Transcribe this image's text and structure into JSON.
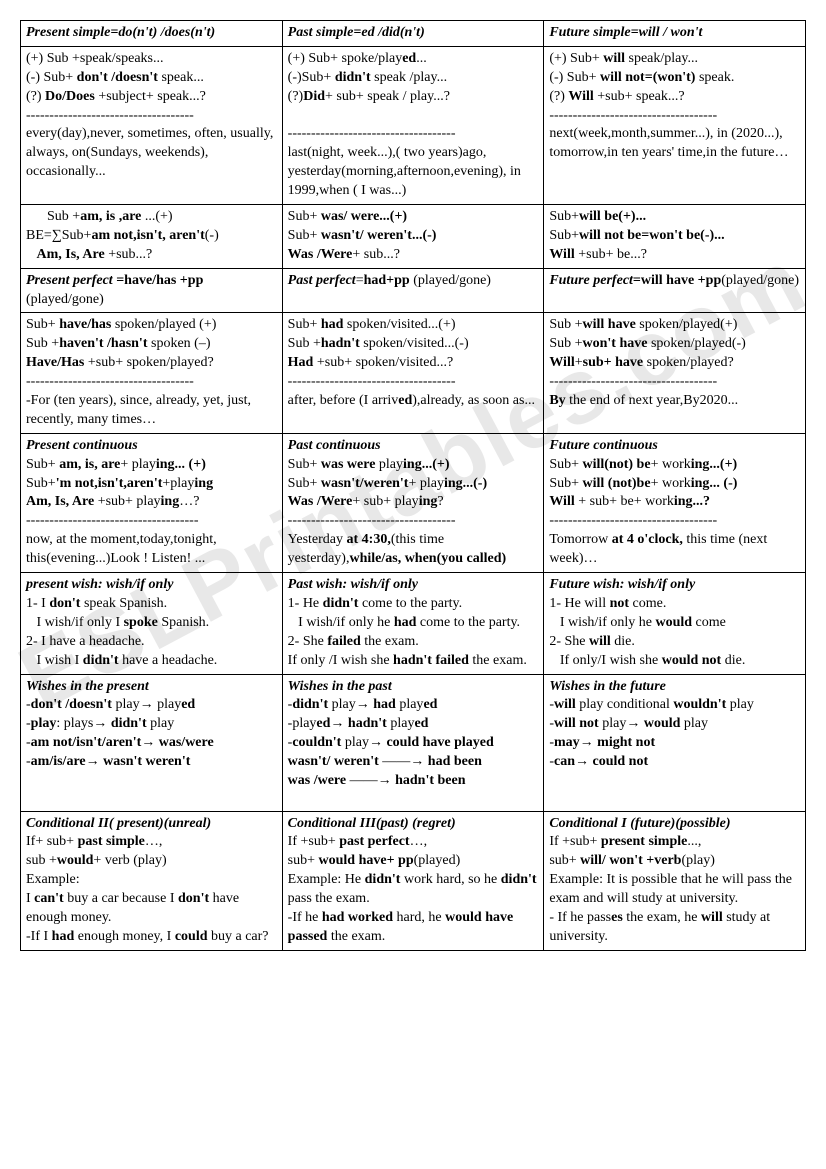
{
  "watermark": "ESLPrintables.com",
  "rows": [
    {
      "c1": "<span class='bi'>Present simple=do(n't) /does(n't)</span>",
      "c2": "<span class='bi'>Past simple=ed /did(n't)</span>",
      "c3": "<span class='bi'>Future simple=will / won't</span>"
    },
    {
      "c1": "(+) Sub +speak/speaks...<br>(-)  Sub+ <b>don't /doesn't</b> speak...<br>(?) <b>Do/Does</b> +subject+ speak...?<br>------------------------------------<br>every(day),never, sometimes, often, usually, always, on(Sundays, weekends), occasionally...",
      "c2": "(+) Sub+ spoke/play<b>ed</b>...<br>(-)Sub+ <b>didn't</b> speak /play...<br>(?)<b>Did</b>+ sub+ speak / play...?<br><br>------------------------------------<br>last(night, week...),( two years)ago, yesterday(morning,afternoon,evening), in 1999,when ( I was...)",
      "c3": "(+) Sub+ <b>will</b> speak/play...<br>(-)  Sub+ <b>will not=(won't)</b> speak.<br>(?) <b>Will</b> +sub+ speak...?<br>------------------------------------<br>next(week,month,summer...), in (2020...),<br>tomorrow,in ten years' time,in the future…",
      "c1b": "&nbsp;&nbsp;&nbsp;&nbsp;&nbsp;&nbsp;Sub +<b>am, is ,are</b> ...(+)<br>BE=∑Sub+<b>am not,isn't, aren't</b>(-)<br>&nbsp;&nbsp;&nbsp;<b>Am, Is, Are</b> +sub...?",
      "c2b": "Sub+ <b>was/ were...(+)</b><br>Sub+ <b>wasn't/ weren't...(-)</b><br><b>Was /Were</b>+ sub...?",
      "c3b": "Sub+<b>will be(+)...</b><br>Sub+<b>will not be=won't be(-)...</b><br><b>Will</b> +sub+ be...?"
    },
    {
      "c1": "<span class='bi'>Present perfect</span> <b>=have/has +pp</b> (played/gone)",
      "c2": "<span class='bi'>Past perfect</span>=<b>had+pp</b> (played/gone)",
      "c3": "<span class='bi'>Future perfect</span><b>=will have +pp</b>(played/gone)"
    },
    {
      "c1": "Sub+ <b>have/has</b> spoken/played (+)<br>Sub +<b>haven't /hasn't</b> spoken (–)<br><b>Have/Has</b> +sub+ spoken/played?<br>------------------------------------<br>-For (ten years), since, already, yet, just, recently, many times…",
      "c2": "Sub+ <b>had</b> spoken/visited...(+)<br>Sub +<b>hadn't</b> spoken/visited...(-)<br><b>Had</b> +sub+ spoken/visited...?<br>------------------------------------<br>after, before (I arriv<b>ed</b>),already, as soon as...",
      "c3": "Sub +<b>will have</b> spoken/played(+)<br>Sub +<b>won't have</b> spoken/played(-)<br><b>Will</b>+<b>sub+ have</b> spoken/played?<br>------------------------------------<br><b>By</b> the end of next year,By2020..."
    },
    {
      "c1": "<span class='bi'>Present continuous</span><br>Sub+ <b>am, is, are</b>+ play<b>ing... (+)</b><br>Sub+<b>'m not,isn't,aren't</b>+play<b>ing</b><br><b>Am, Is, Are</b> +sub+ play<b>ing</b>…?<br>-------------------------------------<br>now, at the moment,today,tonight, this(evening...)Look ! Listen! ...",
      "c2": "<span class='bi'>Past continuous</span><br>Sub+ <b>was were</b> play<b>ing...(+)</b><br>Sub+ <b>wasn't/weren't</b>+ play<b>ing...(-)</b><br><b>Was /Were</b>+ sub+ play<b>ing</b>?<br>------------------------------------<br>Yesterday <b>at 4:30,</b>(this time yesterday),<b>while/as, when(you called)</b>",
      "c3": "<span class='bi'>Future continuous</span><br>Sub+ <b>will(not) be</b>+ work<b>ing...(+)</b><br>Sub+ <b>will (not)be</b>+ work<b>ing... (-)</b><br><b>Will</b> + sub+ be+ work<b>ing...?</b><br>------------------------------------<br>Tomorrow <b>at 4 o'clock,</b> this time (next week)…"
    },
    {
      "c1": "<span class='bi'>present wish: wish/if only</span><br>1- I <b>don't</b> speak Spanish.<br>&nbsp;&nbsp;&nbsp;I wish/if only I <b>spoke</b> Spanish.<br>2- I have a headache.<br>&nbsp;&nbsp;&nbsp;I wish I <b>didn't</b> have a headache.",
      "c2": "<span class='bi'>Past wish: wish/if only</span><br>1- He <b>didn't</b> come to the party.<br>&nbsp;&nbsp;&nbsp;I wish/if only he <b>had</b> come to the party.<br>2- She <b>failed</b> the exam.<br>If only /I wish she <b>hadn't failed</b> the exam.",
      "c3": "<span class='bi'>Future wish: wish/if only</span><br>1- He will <b>not</b> come.<br>&nbsp;&nbsp;&nbsp;I wish/if only he <b>would</b> come<br>2- She <b>will</b> die.<br>&nbsp;&nbsp;&nbsp;If only/I wish she <b>would not</b> die."
    },
    {
      "c1": "<span class='bi'>Wishes in the present</span><br>-<b>don't /doesn't</b> play→ play<b>ed</b><br>-<b>play</b>: plays→ <b>didn't</b> play<br>-<b>am not/isn't/aren't</b>→ <b>was/were</b><br>-<b>am/is/are</b>→ <b>wasn't weren't</b>",
      "c2": "<span class='bi'>Wishes in the past</span><br>-<b>didn't</b> play→ <b>had</b> play<b>ed</b><br>-play<b>ed</b>→ <b>hadn't</b> play<b>ed</b><br>-<b>couldn't</b> play→ <b>could have played</b><br><b>wasn't/ weren't</b> ——→ <b>had been</b><br><b>was /were</b> ——→ <b>hadn't been</b>",
      "c3": "<span class='bi'>Wishes in the future</span><br>-<b>will</b> play conditional <b>wouldn't</b> play<br>-<b>will not</b> play→ <b>would</b> play<br>-<b>may</b>→ <b>might not</b><br>-<b>can</b>→ <b>could not</b>"
    },
    {
      "c1": "<span class='bi'>Conditional II( present)(unreal)</span><br>If+ sub+ <b>past simple</b>…,<br>sub +<b>would</b>+ verb (play)<br>Example:<br>I <b>can't</b> buy a car because I <b>don't</b> have enough money.<br>-If I <b>had</b> enough money, I <b>could</b> buy a car?",
      "c2": "<span class='bi'>Conditional III(past) (regret)</span><br>If +sub+ <b>past perfect</b>…,<br>sub+ <b>would have+ pp</b>(played)<br>Example: He <b>didn't</b> work hard, so he <b>didn't</b> pass the exam.<br>-If he <b>had worked</b> hard, he <b>would have passed</b> the exam.",
      "c3": "<span class='bi'>Conditional I (future)(possible)</span><br>If +sub+ <b>present simple</b>...,<br>sub+ <b>will/ won't +verb</b>(play)<br>Example: It is possible that he will pass the exam and will study at university.<br>- If he pass<b>es</b> the exam, he <b>will</b> study at university."
    }
  ]
}
